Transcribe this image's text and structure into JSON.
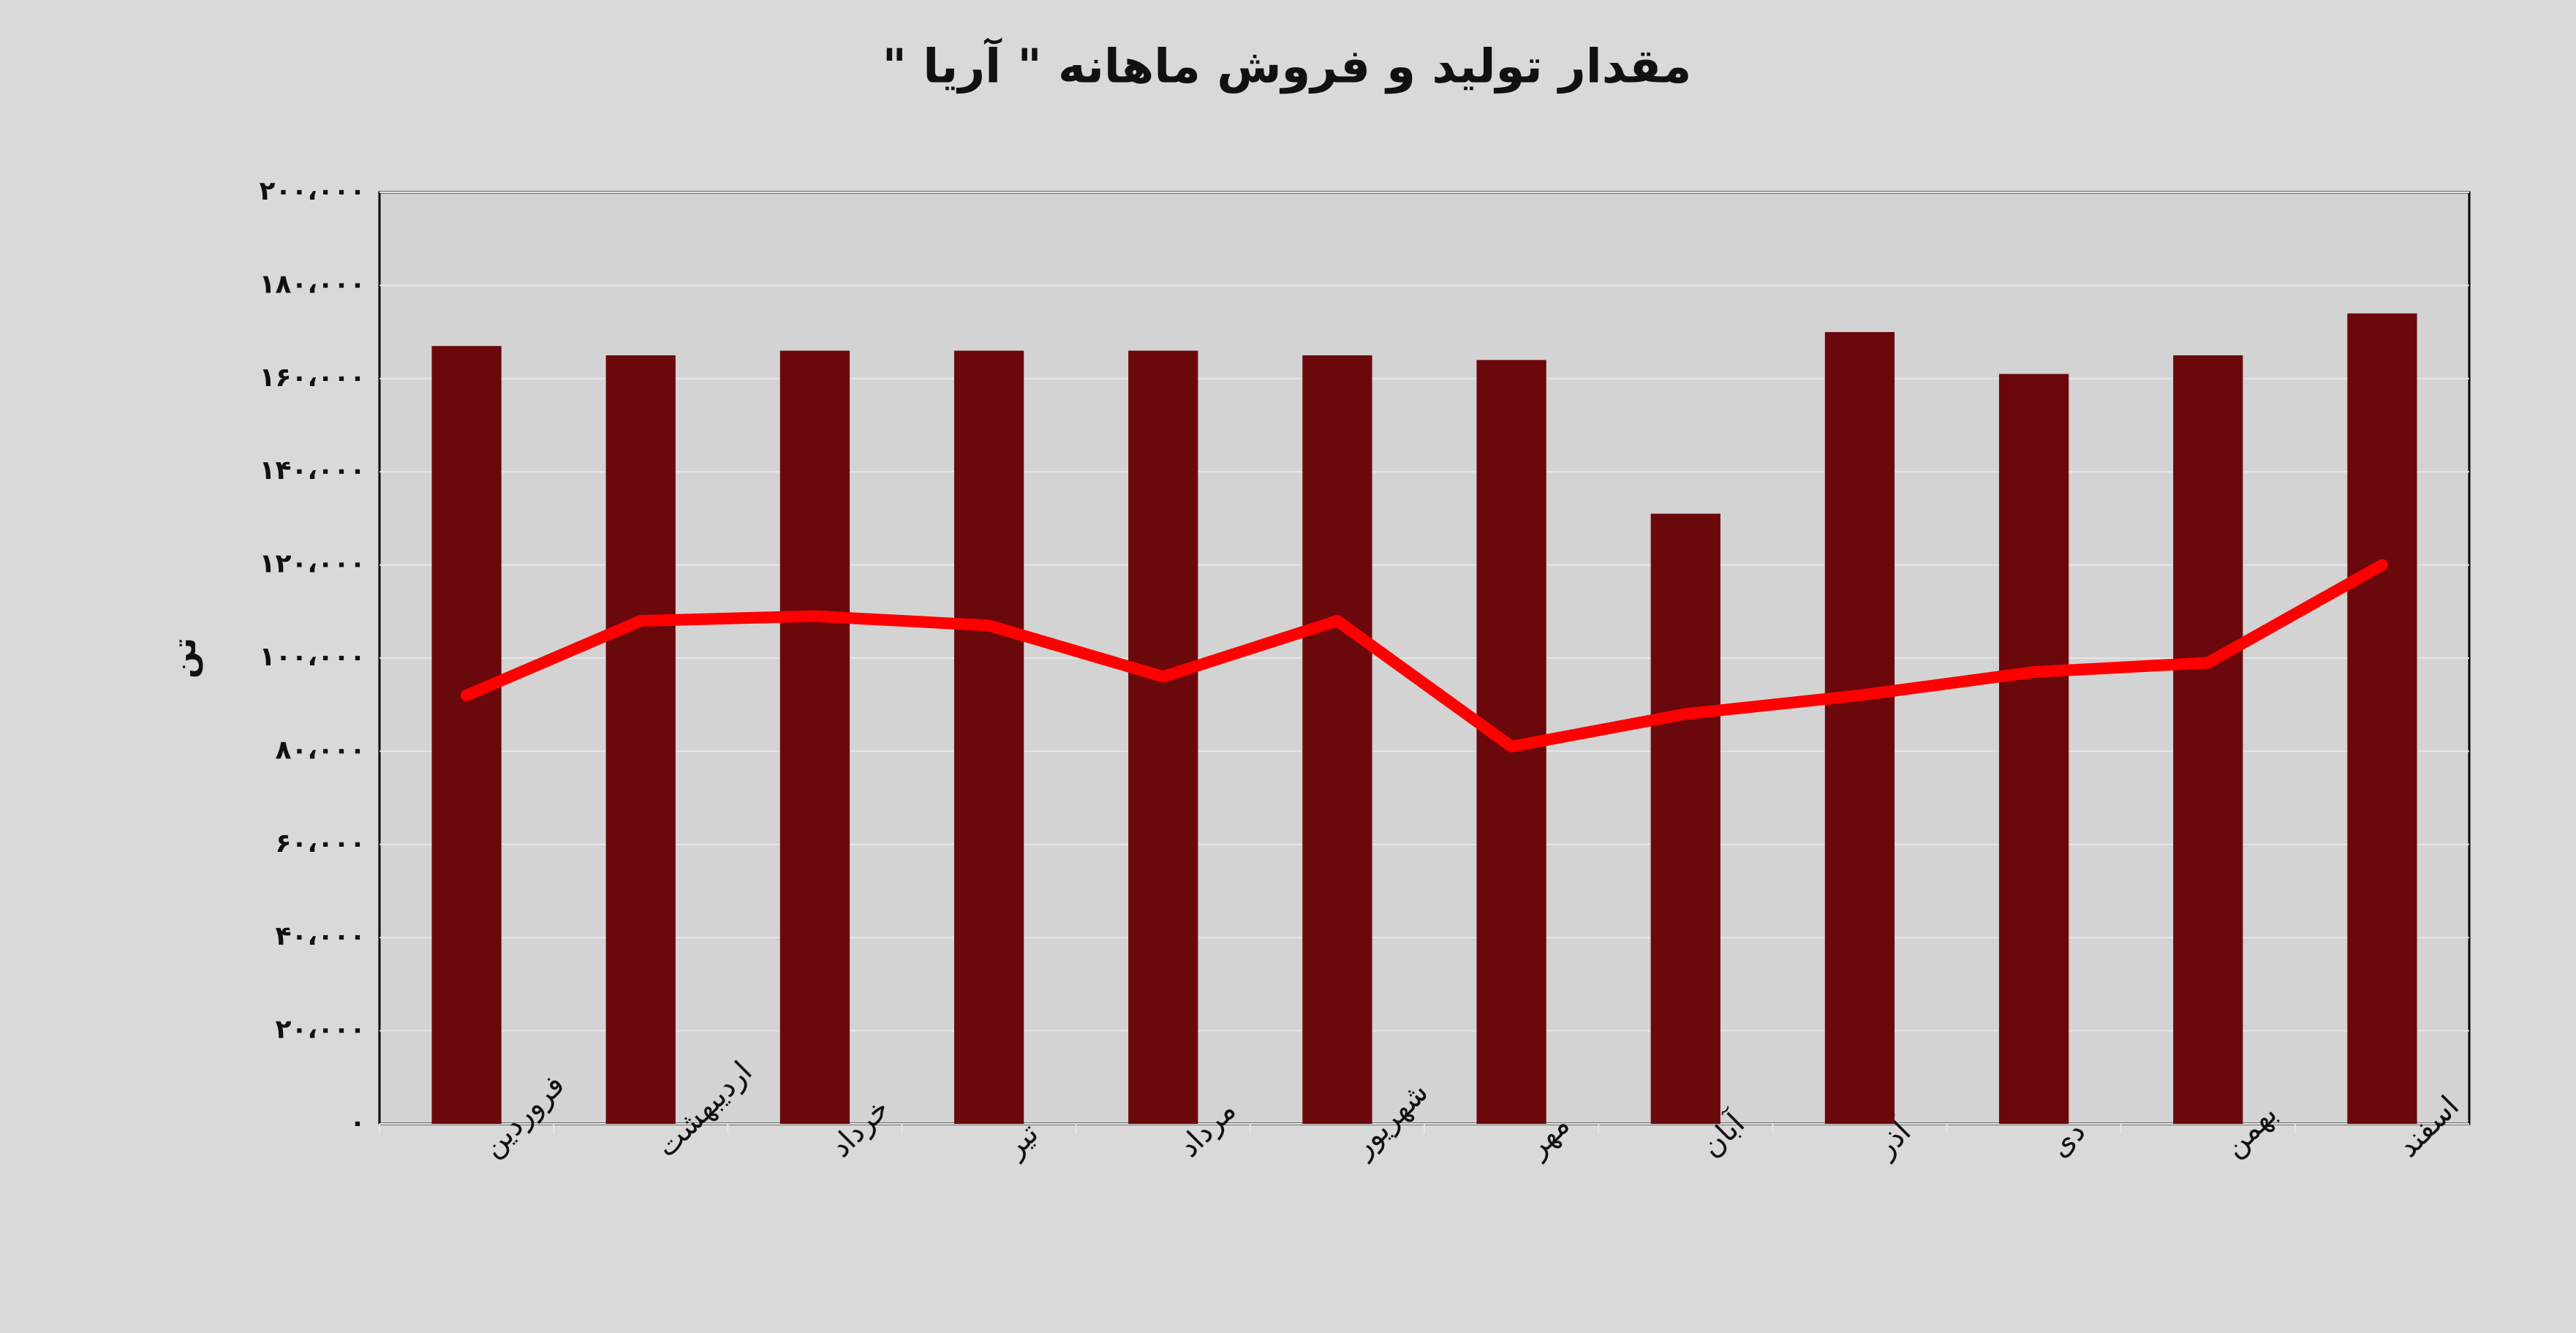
{
  "chart_data": {
    "type": "bar",
    "title": "مقدار تولید و فروش ماهانه \" آریا \"",
    "y_label": "تن",
    "categories": [
      "فروردین",
      "اردیبهشت",
      "خرداد",
      "تیر",
      "مرداد",
      "شهریور",
      "مهر",
      "آبان",
      "آذر",
      "دی",
      "بهمن",
      "اسفند"
    ],
    "series": [
      {
        "type": "bar",
        "color": "#6b080c",
        "values": [
          167000,
          165000,
          166000,
          166000,
          166000,
          165000,
          164000,
          131000,
          170000,
          161000,
          165000,
          174000
        ]
      },
      {
        "type": "line",
        "color": "#ff0000",
        "values": [
          92000,
          108000,
          109000,
          107000,
          96000,
          108000,
          81000,
          88000,
          92000,
          97000,
          99000,
          120000
        ]
      }
    ],
    "ylim": [
      0,
      200000
    ],
    "yticks": [
      {
        "value": 0,
        "label": "۰"
      },
      {
        "value": 20000,
        "label": "۲۰،۰۰۰"
      },
      {
        "value": 40000,
        "label": "۴۰،۰۰۰"
      },
      {
        "value": 60000,
        "label": "۶۰،۰۰۰"
      },
      {
        "value": 80000,
        "label": "۸۰،۰۰۰"
      },
      {
        "value": 100000,
        "label": "۱۰۰،۰۰۰"
      },
      {
        "value": 120000,
        "label": "۱۲۰،۰۰۰"
      },
      {
        "value": 140000,
        "label": "۱۴۰،۰۰۰"
      },
      {
        "value": 160000,
        "label": "۱۶۰،۰۰۰"
      },
      {
        "value": 180000,
        "label": "۱۸۰،۰۰۰"
      },
      {
        "value": 200000,
        "label": "۲۰۰،۰۰۰"
      }
    ],
    "grid": true
  }
}
